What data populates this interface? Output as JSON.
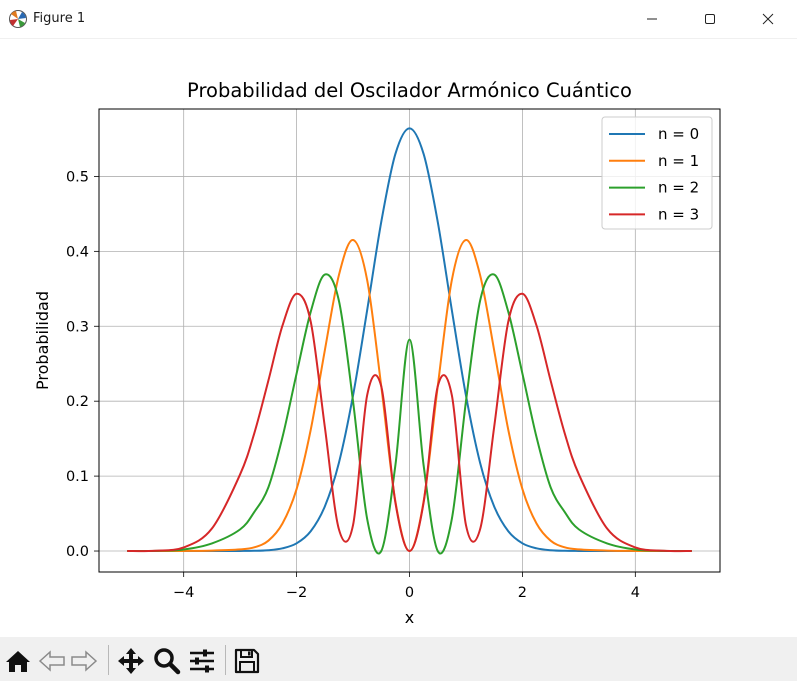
{
  "window": {
    "title": "Figure 1",
    "icons": [
      "matplotlib-app-icon",
      "minimize-icon",
      "maximize-icon",
      "close-icon"
    ]
  },
  "toolbar": {
    "icons": [
      "home-icon",
      "back-icon",
      "forward-icon",
      "pan-icon",
      "zoom-icon",
      "configure-subplots-icon",
      "save-icon"
    ]
  },
  "chart_data": {
    "type": "line",
    "title": "Probabilidad del Oscilador Armónico Cuántico",
    "xlabel": "x",
    "ylabel": "Probabilidad",
    "xlim": [
      -5.5,
      5.5
    ],
    "ylim": [
      -0.028,
      0.59
    ],
    "xticks": [
      -4,
      -2,
      0,
      2,
      4
    ],
    "xtick_labels": [
      "−4",
      "−2",
      "0",
      "2",
      "4"
    ],
    "yticks": [
      0.0,
      0.1,
      0.2,
      0.3,
      0.4,
      0.5
    ],
    "ytick_labels": [
      "0.0",
      "0.1",
      "0.2",
      "0.3",
      "0.4",
      "0.5"
    ],
    "grid": true,
    "legend_position": "top-right",
    "x": [
      -5.0,
      -4.5,
      -4.0,
      -3.5,
      -3.0,
      -2.75,
      -2.5,
      -2.25,
      -2.0,
      -1.75,
      -1.5,
      -1.25,
      -1.0,
      -0.75,
      -0.5,
      -0.25,
      0.0,
      0.25,
      0.5,
      0.75,
      1.0,
      1.25,
      1.5,
      1.75,
      2.0,
      2.25,
      2.5,
      2.75,
      3.0,
      3.5,
      4.0,
      4.5,
      5.0
    ],
    "series": [
      {
        "name": "n = 0",
        "color": "#1f77b4",
        "values": [
          0.0,
          0.0,
          0.0,
          0.0,
          0.0001,
          0.0003,
          0.0011,
          0.0036,
          0.0103,
          0.0264,
          0.0595,
          0.1179,
          0.2076,
          0.3215,
          0.4394,
          0.53,
          0.5642,
          0.53,
          0.4394,
          0.3215,
          0.2076,
          0.1179,
          0.0595,
          0.0264,
          0.0103,
          0.0036,
          0.0011,
          0.0003,
          0.0001,
          0.0,
          0.0,
          0.0,
          0.0
        ]
      },
      {
        "name": "n = 1",
        "color": "#ff7f0e",
        "values": [
          0.0,
          0.0,
          0.0001,
          0.0006,
          0.0022,
          0.0049,
          0.0138,
          0.0367,
          0.0827,
          0.1617,
          0.2678,
          0.3685,
          0.4151,
          0.3617,
          0.2197,
          0.0663,
          0.0,
          0.0663,
          0.2197,
          0.3617,
          0.4151,
          0.3685,
          0.2678,
          0.1617,
          0.0827,
          0.0367,
          0.0138,
          0.0049,
          0.0022,
          0.0006,
          0.0001,
          0.0,
          0.0
        ]
      },
      {
        "name": "n = 2",
        "color": "#2ca02c",
        "values": [
          0.0,
          0.0002,
          0.0021,
          0.0102,
          0.0289,
          0.052,
          0.085,
          0.152,
          0.2369,
          0.3193,
          0.369,
          0.3339,
          0.1998,
          0.0429,
          0.0,
          0.1144,
          0.2821,
          0.1144,
          0.0,
          0.0429,
          0.1998,
          0.3339,
          0.369,
          0.3193,
          0.2369,
          0.152,
          0.085,
          0.052,
          0.0289,
          0.0102,
          0.0021,
          0.0002,
          0.0
        ]
      },
      {
        "name": "n = 3",
        "color": "#d62728",
        "values": [
          0.0,
          0.0004,
          0.0048,
          0.03,
          0.1024,
          0.157,
          0.2274,
          0.3009,
          0.3434,
          0.3062,
          0.1657,
          0.0289,
          0.0346,
          0.208,
          0.2197,
          0.0646,
          0.0,
          0.0646,
          0.2197,
          0.208,
          0.0346,
          0.0289,
          0.1657,
          0.3062,
          0.3434,
          0.3009,
          0.2274,
          0.157,
          0.1024,
          0.03,
          0.0048,
          0.0004,
          0.0
        ]
      }
    ]
  }
}
